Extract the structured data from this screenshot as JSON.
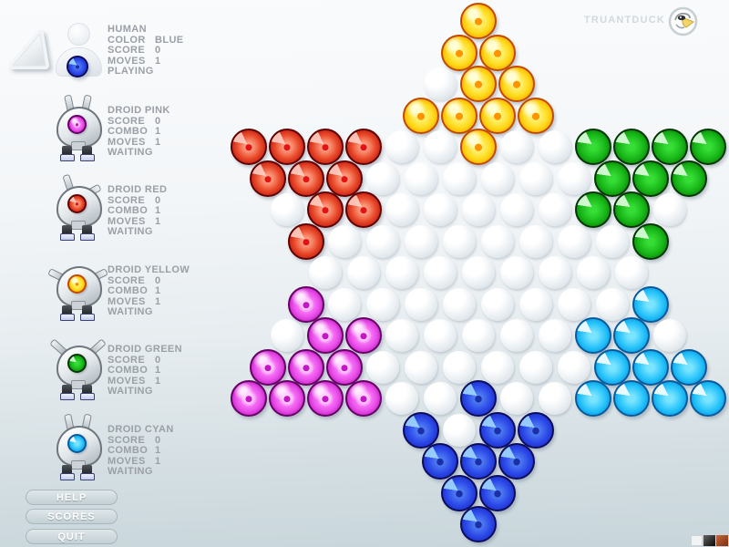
{
  "brand": {
    "name": "TRUANTDUCK",
    "logo_icon": "duck-logo"
  },
  "players": [
    {
      "name": "HUMAN",
      "stats": [
        {
          "k": "COLOR",
          "v": "BLUE"
        },
        {
          "k": "SCORE",
          "v": "0"
        },
        {
          "k": "MOVES",
          "v": "1"
        }
      ],
      "status": "PLAYING",
      "avatar": "human",
      "marble": "blue"
    },
    {
      "name": "DROID PINK",
      "stats": [
        {
          "k": "SCORE",
          "v": "0"
        },
        {
          "k": "COMBO",
          "v": "1"
        },
        {
          "k": "MOVES",
          "v": "1"
        }
      ],
      "status": "WAITING",
      "avatar": "droid",
      "marble": "magenta"
    },
    {
      "name": "DROID RED",
      "stats": [
        {
          "k": "SCORE",
          "v": "0"
        },
        {
          "k": "COMBO",
          "v": "1"
        },
        {
          "k": "MOVES",
          "v": "1"
        }
      ],
      "status": "WAITING",
      "avatar": "droid",
      "marble": "red"
    },
    {
      "name": "DROID YELLOW",
      "stats": [
        {
          "k": "SCORE",
          "v": "0"
        },
        {
          "k": "COMBO",
          "v": "1"
        },
        {
          "k": "MOVES",
          "v": "1"
        }
      ],
      "status": "WAITING",
      "avatar": "droid",
      "marble": "yellow"
    },
    {
      "name": "DROID GREEN",
      "stats": [
        {
          "k": "SCORE",
          "v": "0"
        },
        {
          "k": "COMBO",
          "v": "1"
        },
        {
          "k": "MOVES",
          "v": "1"
        }
      ],
      "status": "WAITING",
      "avatar": "droid",
      "marble": "green"
    },
    {
      "name": "DROID CYAN",
      "stats": [
        {
          "k": "SCORE",
          "v": "0"
        },
        {
          "k": "COMBO",
          "v": "1"
        },
        {
          "k": "MOVES",
          "v": "1"
        }
      ],
      "status": "WAITING",
      "avatar": "droid",
      "marble": "cyan"
    }
  ],
  "buttons": [
    {
      "label": "HELP"
    },
    {
      "label": "SCORES"
    },
    {
      "label": "QUIT"
    }
  ],
  "board": {
    "rows": [
      "Y",
      "YY",
      ".YY",
      "YYYY",
      "RRRR..Y..GGGG",
      "RRR......GGG",
      ".RR.....GG.",
      "R........G",
      ".........",
      "M........C",
      ".MM.....CC.",
      "MMM......CCC",
      "MMMM..B..CCCC",
      "B.BB",
      "BBB",
      "BB",
      "B"
    ],
    "palette": {
      "Y": {
        "name": "yellow",
        "hex": "#ffd817"
      },
      "R": {
        "name": "red",
        "hex": "#e03022"
      },
      "G": {
        "name": "green",
        "hex": "#17b517"
      },
      "M": {
        "name": "magenta",
        "hex": "#e94fe9"
      },
      "C": {
        "name": "cyan",
        "hex": "#24c2fa"
      },
      "B": {
        "name": "blue",
        "hex": "#2a46e8"
      },
      ".": {
        "name": "empty",
        "hex": "#e9eef1"
      }
    }
  },
  "icons": {
    "nav_arrow": "wedge-arrow",
    "logo": "duck-logo",
    "swatches": [
      "white",
      "black",
      "brown"
    ]
  }
}
